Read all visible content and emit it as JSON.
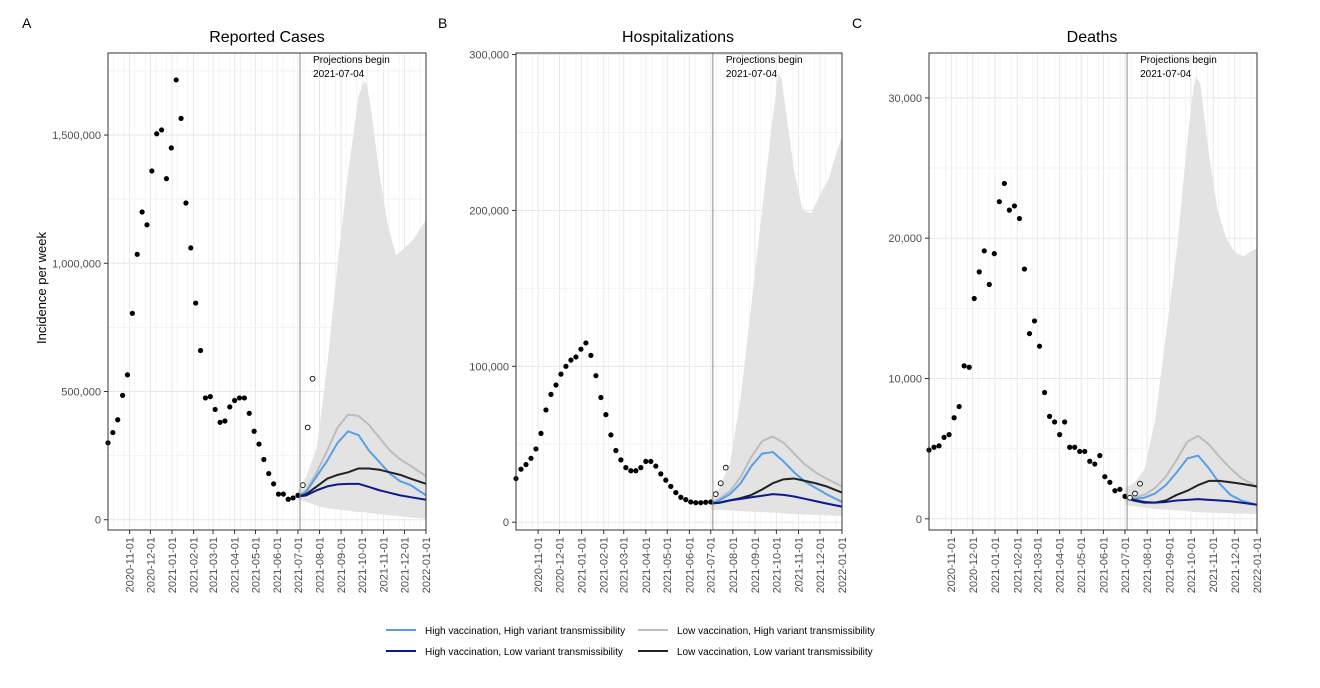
{
  "colors": {
    "high_vax_high_var": "#56a0e8",
    "high_vax_low_var": "#0b1a8c",
    "low_vax_high_var": "#bdbdbd",
    "low_vax_low_var": "#222222",
    "ribbon": "#e3e3e3",
    "grid_major": "#e8e8e8",
    "grid_minor": "#f3f3f3",
    "observed": "#000000"
  },
  "shared": {
    "ylabel": "Incidence per week",
    "x_ticks": [
      "2020-11-01",
      "2020-12-01",
      "2021-01-01",
      "2021-02-01",
      "2021-03-01",
      "2021-04-01",
      "2021-05-01",
      "2021-06-01",
      "2021-07-01",
      "2021-08-01",
      "2021-09-01",
      "2021-10-01",
      "2021-11-01",
      "2021-12-01",
      "2022-01-01"
    ],
    "x_tick_days": [
      31,
      61,
      92,
      123,
      151,
      182,
      212,
      243,
      273,
      304,
      335,
      365,
      396,
      426,
      457
    ],
    "xlim_days": [
      0,
      457
    ],
    "projection_start_day": 276,
    "annotation_line1": "Projections begin",
    "annotation_line2": "2021-07-04"
  },
  "chart_data": [
    {
      "type": "line",
      "letter": "A",
      "title": "Reported Cases",
      "ylim": [
        -40000,
        1820000
      ],
      "y_ticks": [
        0,
        500000,
        1000000,
        1500000
      ],
      "y_tick_labels": [
        "0",
        "500,000",
        "1,000,000",
        "1,500,000"
      ],
      "observed": {
        "x": [
          0,
          7,
          14,
          21,
          28,
          35,
          42,
          49,
          56,
          63,
          70,
          77,
          84,
          91,
          98,
          105,
          112,
          119,
          126,
          133,
          140,
          147,
          154,
          161,
          168,
          175,
          182,
          189,
          196,
          203,
          210,
          217,
          224,
          231,
          238,
          245,
          252,
          259,
          266,
          273
        ],
        "y": [
          300000,
          340000,
          390000,
          485000,
          565000,
          805000,
          1035000,
          1200000,
          1150000,
          1360000,
          1505000,
          1520000,
          1330000,
          1450000,
          1715000,
          1565000,
          1235000,
          1060000,
          845000,
          660000,
          475000,
          480000,
          430000,
          380000,
          385000,
          440000,
          465000,
          475000,
          475000,
          415000,
          345000,
          295000,
          235000,
          180000,
          140000,
          100000,
          100000,
          80000,
          85000,
          95000
        ]
      },
      "preliminary": {
        "x": [
          280,
          287,
          294
        ],
        "y": [
          135000,
          360000,
          550000
        ]
      },
      "ribbon": {
        "x": [
          273,
          285,
          300,
          315,
          330,
          345,
          360,
          368,
          372,
          378,
          390,
          402,
          414,
          426,
          438,
          457
        ],
        "upper": [
          110000,
          170000,
          280000,
          600000,
          1000000,
          1350000,
          1650000,
          1710000,
          1700000,
          1600000,
          1350000,
          1150000,
          1030000,
          1060000,
          1090000,
          1170000
        ],
        "lower": [
          80000,
          70000,
          55000,
          45000,
          40000,
          35000,
          30000,
          30000,
          28000,
          25000,
          22000,
          18000,
          15000,
          12000,
          8000,
          5000
        ]
      },
      "series": [
        {
          "name": "High vaccination, High variant transmissibility",
          "color_key": "high_vax_high_var",
          "x": [
            273,
            285,
            300,
            315,
            330,
            345,
            360,
            375,
            390,
            405,
            420,
            435,
            457
          ],
          "y": [
            90000,
            110000,
            170000,
            230000,
            300000,
            345000,
            330000,
            270000,
            225000,
            180000,
            150000,
            135000,
            95000
          ]
        },
        {
          "name": "Low vaccination, High variant transmissibility",
          "color_key": "low_vax_high_var",
          "x": [
            273,
            285,
            300,
            315,
            330,
            345,
            360,
            375,
            390,
            405,
            420,
            435,
            457
          ],
          "y": [
            90000,
            115000,
            185000,
            270000,
            360000,
            410000,
            405000,
            370000,
            320000,
            270000,
            235000,
            210000,
            170000
          ]
        },
        {
          "name": "High vaccination, Low variant transmissibility",
          "color_key": "high_vax_low_var",
          "x": [
            273,
            285,
            300,
            315,
            330,
            345,
            360,
            375,
            390,
            405,
            420,
            435,
            457
          ],
          "y": [
            90000,
            95000,
            115000,
            130000,
            138000,
            140000,
            140000,
            128000,
            115000,
            105000,
            95000,
            88000,
            78000
          ]
        },
        {
          "name": "Low vaccination, Low variant transmissibility",
          "color_key": "low_vax_low_var",
          "x": [
            273,
            285,
            300,
            315,
            330,
            345,
            360,
            375,
            390,
            405,
            420,
            435,
            457
          ],
          "y": [
            90000,
            100000,
            130000,
            160000,
            175000,
            185000,
            200000,
            200000,
            195000,
            185000,
            175000,
            160000,
            140000
          ]
        }
      ]
    },
    {
      "type": "line",
      "letter": "B",
      "title": "Hospitalizations",
      "ylim": [
        -5000,
        301000
      ],
      "y_ticks": [
        0,
        100000,
        200000,
        300000
      ],
      "y_tick_labels": [
        "0",
        "100,000",
        "200,000",
        "300,000"
      ],
      "observed": {
        "x": [
          0,
          7,
          14,
          21,
          28,
          35,
          42,
          49,
          56,
          63,
          70,
          77,
          84,
          91,
          98,
          105,
          112,
          119,
          126,
          133,
          140,
          147,
          154,
          161,
          168,
          175,
          182,
          189,
          196,
          203,
          210,
          217,
          224,
          231,
          238,
          245,
          252,
          259,
          266,
          273
        ],
        "y": [
          28000,
          34000,
          37000,
          41000,
          47000,
          57000,
          72000,
          82000,
          88000,
          95000,
          100000,
          104000,
          106000,
          111000,
          115000,
          107000,
          94000,
          80000,
          69000,
          56000,
          46000,
          40000,
          35000,
          33000,
          33000,
          35000,
          39000,
          39000,
          36000,
          31000,
          27000,
          23000,
          19000,
          16000,
          14500,
          13000,
          12500,
          12500,
          12800,
          13000
        ]
      },
      "preliminary": {
        "x": [
          280,
          287,
          294
        ],
        "y": [
          18000,
          25000,
          35000
        ]
      },
      "ribbon": {
        "x": [
          273,
          285,
          300,
          315,
          330,
          345,
          360,
          368,
          372,
          378,
          390,
          402,
          414,
          426,
          438,
          457
        ],
        "upper": [
          16000,
          22000,
          38000,
          80000,
          140000,
          200000,
          260000,
          288000,
          285000,
          265000,
          225000,
          200000,
          198000,
          210000,
          220000,
          248000
        ],
        "lower": [
          8000,
          8000,
          7500,
          7000,
          6800,
          6500,
          6200,
          6000,
          5800,
          5500,
          5200,
          5000,
          4800,
          4600,
          4400,
          4000
        ]
      },
      "series": [
        {
          "name": "High vaccination, High variant transmissibility",
          "color_key": "high_vax_high_var",
          "x": [
            273,
            285,
            300,
            315,
            330,
            345,
            360,
            375,
            390,
            405,
            420,
            435,
            457
          ],
          "y": [
            12000,
            14000,
            18000,
            25000,
            36000,
            44000,
            45000,
            39000,
            32000,
            26000,
            22000,
            18000,
            13000
          ]
        },
        {
          "name": "Low vaccination, High variant transmissibility",
          "color_key": "low_vax_high_var",
          "x": [
            273,
            285,
            300,
            315,
            330,
            345,
            360,
            375,
            390,
            405,
            420,
            435,
            457
          ],
          "y": [
            12000,
            15000,
            20000,
            29000,
            42000,
            52000,
            55000,
            51000,
            44000,
            37000,
            32000,
            28000,
            23000
          ]
        },
        {
          "name": "High vaccination, Low variant transmissibility",
          "color_key": "high_vax_low_var",
          "x": [
            273,
            285,
            300,
            315,
            330,
            345,
            360,
            375,
            390,
            405,
            420,
            435,
            457
          ],
          "y": [
            12000,
            12500,
            14000,
            15000,
            16000,
            17000,
            18000,
            17500,
            16500,
            15000,
            13500,
            12000,
            10000
          ]
        },
        {
          "name": "Low vaccination, Low variant transmissibility",
          "color_key": "low_vax_low_var",
          "x": [
            273,
            285,
            300,
            315,
            330,
            345,
            360,
            375,
            390,
            405,
            420,
            435,
            457
          ],
          "y": [
            12000,
            12500,
            14000,
            15500,
            17500,
            21000,
            25000,
            27500,
            28000,
            26500,
            25000,
            23000,
            19000
          ]
        }
      ]
    },
    {
      "type": "line",
      "letter": "C",
      "title": "Deaths",
      "ylim": [
        -800,
        33200
      ],
      "y_ticks": [
        0,
        10000,
        20000,
        30000
      ],
      "y_tick_labels": [
        "0",
        "10,000",
        "20,000",
        "30,000"
      ],
      "observed": {
        "x": [
          0,
          7,
          14,
          21,
          28,
          35,
          42,
          49,
          56,
          63,
          70,
          77,
          84,
          91,
          98,
          105,
          112,
          119,
          126,
          133,
          140,
          147,
          154,
          161,
          168,
          175,
          182,
          189,
          196,
          203,
          210,
          217,
          224,
          231,
          238,
          245,
          252,
          259,
          266,
          273
        ],
        "y": [
          4900,
          5100,
          5200,
          5800,
          6000,
          7200,
          8000,
          10900,
          10800,
          15700,
          17600,
          19100,
          16700,
          18900,
          22600,
          23900,
          22000,
          22300,
          21400,
          17800,
          13200,
          14100,
          12300,
          9000,
          7300,
          6900,
          6000,
          6900,
          5100,
          5100,
          4800,
          4800,
          4100,
          3900,
          4500,
          3000,
          2600,
          2000,
          2100,
          1600
        ]
      },
      "preliminary": {
        "x": [
          280,
          287,
          294
        ],
        "y": [
          1500,
          1800,
          2500
        ]
      },
      "ribbon": {
        "x": [
          273,
          285,
          300,
          315,
          330,
          345,
          360,
          368,
          372,
          378,
          390,
          402,
          414,
          426,
          438,
          457
        ],
        "upper": [
          2200,
          2500,
          3500,
          7000,
          13000,
          19000,
          27000,
          30500,
          31500,
          31000,
          26000,
          22000,
          20000,
          19000,
          18700,
          19300
        ],
        "lower": [
          1000,
          900,
          800,
          700,
          650,
          600,
          550,
          500,
          480,
          460,
          440,
          420,
          400,
          380,
          360,
          340
        ]
      },
      "series": [
        {
          "name": "High vaccination, High variant transmissibility",
          "color_key": "high_vax_high_var",
          "x": [
            273,
            285,
            300,
            315,
            330,
            345,
            360,
            375,
            390,
            405,
            420,
            435,
            457
          ],
          "y": [
            1500,
            1400,
            1500,
            1800,
            2400,
            3300,
            4300,
            4500,
            3600,
            2500,
            1700,
            1300,
            1000
          ]
        },
        {
          "name": "Low vaccination, High variant transmissibility",
          "color_key": "low_vax_high_var",
          "x": [
            273,
            285,
            300,
            315,
            330,
            345,
            360,
            375,
            390,
            405,
            420,
            435,
            457
          ],
          "y": [
            1500,
            1500,
            1700,
            2200,
            3000,
            4200,
            5500,
            5900,
            5300,
            4400,
            3600,
            2900,
            2300
          ]
        },
        {
          "name": "High vaccination, Low variant transmissibility",
          "color_key": "high_vax_low_var",
          "x": [
            273,
            285,
            300,
            315,
            330,
            345,
            360,
            375,
            390,
            405,
            420,
            435,
            457
          ],
          "y": [
            1500,
            1300,
            1150,
            1150,
            1200,
            1300,
            1350,
            1400,
            1350,
            1300,
            1250,
            1150,
            1000
          ]
        },
        {
          "name": "Low vaccination, Low variant transmissibility",
          "color_key": "low_vax_low_var",
          "x": [
            273,
            285,
            300,
            315,
            330,
            345,
            360,
            375,
            390,
            405,
            420,
            435,
            457
          ],
          "y": [
            1500,
            1350,
            1200,
            1150,
            1300,
            1700,
            2000,
            2400,
            2700,
            2700,
            2600,
            2500,
            2300
          ]
        }
      ]
    }
  ],
  "legend": [
    {
      "label": "High vaccination, High variant transmissibility",
      "color_key": "high_vax_high_var"
    },
    {
      "label": "Low vaccination, High variant transmissibility",
      "color_key": "low_vax_high_var"
    },
    {
      "label": "High vaccination, Low variant transmissibility",
      "color_key": "high_vax_low_var"
    },
    {
      "label": "Low vaccination, Low variant transmissibility",
      "color_key": "low_vax_low_var"
    }
  ]
}
